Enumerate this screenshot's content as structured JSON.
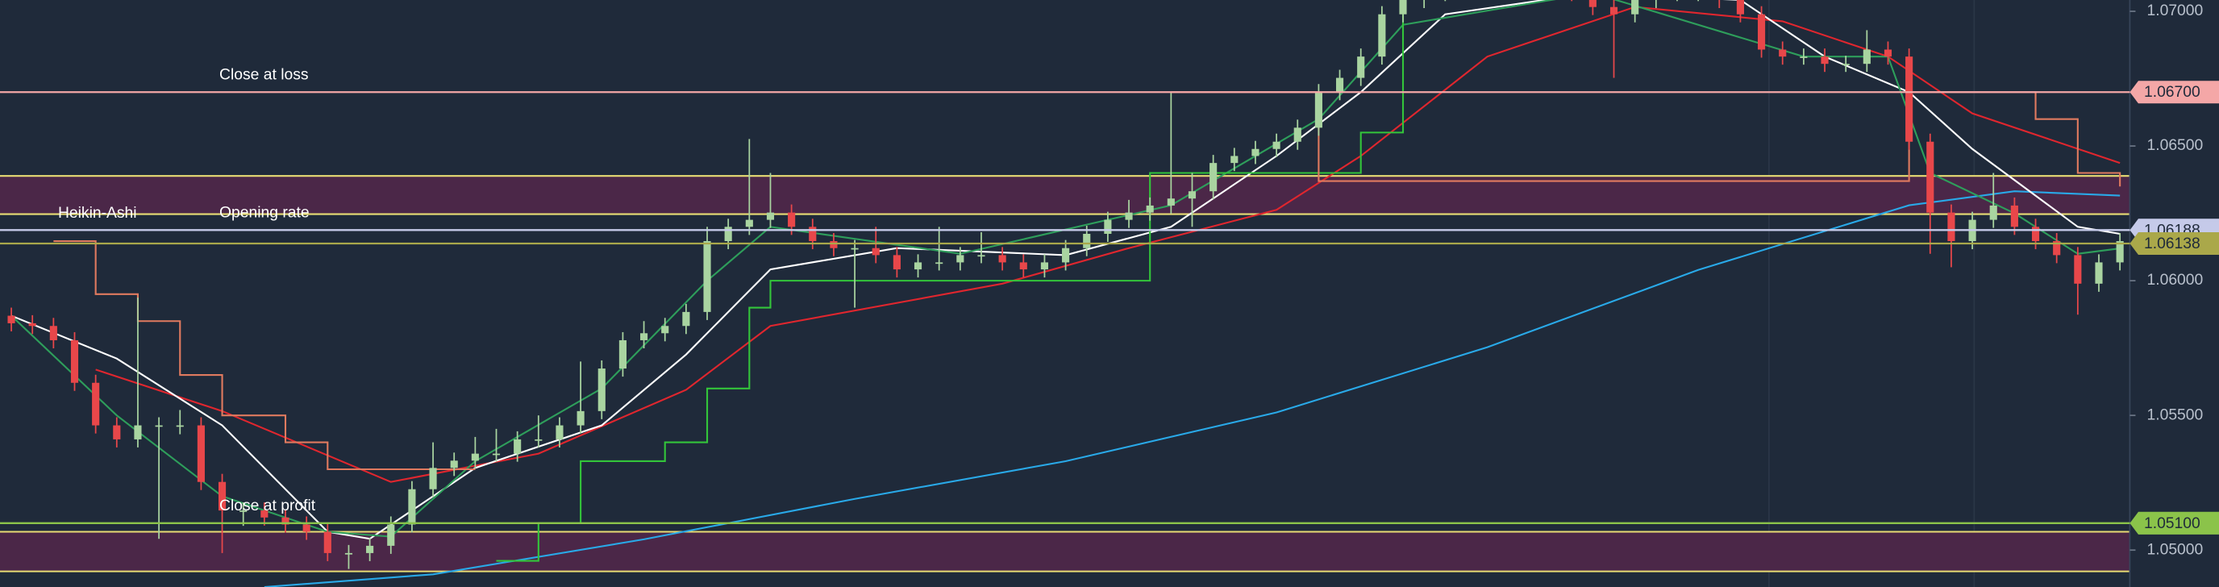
{
  "chart_data": {
    "type": "candlestick",
    "ylim": [
      1.04863,
      1.07042
    ],
    "yticks": [
      {
        "value": 1.07,
        "label": "1.07000"
      },
      {
        "value": 1.065,
        "label": "1.06500"
      },
      {
        "value": 1.06,
        "label": "1.06000"
      },
      {
        "value": 1.055,
        "label": "1.05500"
      },
      {
        "value": 1.05,
        "label": "1.05000"
      }
    ],
    "annotation": "Heikin-Ashi",
    "up_color": "#a9d4a0",
    "down_color": "#e8474a",
    "candles": {
      "open": [
        1.0587,
        1.05842,
        1.05832,
        1.05779,
        1.05621,
        1.05463,
        1.05411,
        1.05463,
        1.05463,
        1.05463,
        1.05253,
        1.05147,
        1.05147,
        1.05121,
        1.05095,
        1.05068,
        1.04989,
        1.04989,
        1.05016,
        1.05095,
        1.05226,
        1.05305,
        1.05332,
        1.05358,
        1.05358,
        1.05411,
        1.05411,
        1.05463,
        1.05516,
        1.05674,
        1.05779,
        1.05805,
        1.05832,
        1.05884,
        1.06147,
        1.062,
        1.06226,
        1.06253,
        1.062,
        1.06147,
        1.06121,
        1.06121,
        1.06095,
        1.06042,
        1.06068,
        1.06068,
        1.06095,
        1.06095,
        1.06068,
        1.06042,
        1.06068,
        1.06121,
        1.06174,
        1.06226,
        1.06253,
        1.06279,
        1.06305,
        1.06332,
        1.06437,
        1.06463,
        1.06489,
        1.06516,
        1.06568,
        1.067,
        1.06753,
        1.06832,
        1.06989,
        1.07042,
        1.07068,
        1.07095,
        1.07095,
        1.07095,
        1.07095,
        1.07095,
        1.07095,
        1.07068,
        1.07016,
        1.06989,
        1.07042,
        1.07068,
        1.07068,
        1.07068,
        1.07042,
        1.06989,
        1.06858,
        1.06832,
        1.06832,
        1.06805,
        1.06805,
        1.06858,
        1.06832,
        1.06516,
        1.06253,
        1.06147,
        1.06226,
        1.06279,
        1.062,
        1.06147,
        1.06095,
        1.05989,
        1.06068
      ],
      "high": [
        1.059,
        1.05872,
        1.05862,
        1.05809,
        1.05651,
        1.05493,
        1.05937,
        1.05493,
        1.0552,
        1.05493,
        1.05283,
        1.05177,
        1.05177,
        1.05151,
        1.05125,
        1.05098,
        1.05019,
        1.05046,
        1.05125,
        1.05256,
        1.054,
        1.05362,
        1.0542,
        1.0545,
        1.05441,
        1.055,
        1.05493,
        1.057,
        1.05704,
        1.05809,
        1.0585,
        1.05862,
        1.05914,
        1.062,
        1.0623,
        1.06526,
        1.064,
        1.06283,
        1.0623,
        1.06177,
        1.06151,
        1.062,
        1.06125,
        1.06098,
        1.062,
        1.06125,
        1.0618,
        1.06125,
        1.06098,
        1.06098,
        1.06151,
        1.06204,
        1.06256,
        1.063,
        1.06309,
        1.067,
        1.064,
        1.06467,
        1.06493,
        1.06519,
        1.06546,
        1.06598,
        1.0673,
        1.06783,
        1.06862,
        1.07019,
        1.07072,
        1.07098,
        1.07125,
        1.07125,
        1.07125,
        1.07125,
        1.07125,
        1.07125,
        1.07125,
        1.07098,
        1.07046,
        1.07072,
        1.07098,
        1.07098,
        1.07098,
        1.07098,
        1.07072,
        1.07019,
        1.06888,
        1.06862,
        1.06862,
        1.06835,
        1.0693,
        1.06888,
        1.06862,
        1.06546,
        1.06283,
        1.06256,
        1.064,
        1.06309,
        1.0623,
        1.06177,
        1.06125,
        1.06098,
        1.06177
      ],
      "low": [
        1.05812,
        1.05802,
        1.05749,
        1.05591,
        1.05433,
        1.05381,
        1.05381,
        1.05042,
        1.0543,
        1.05223,
        1.04989,
        1.0509,
        1.05091,
        1.05065,
        1.05038,
        1.04959,
        1.0493,
        1.04959,
        1.04986,
        1.05065,
        1.05196,
        1.05275,
        1.05302,
        1.05328,
        1.05328,
        1.05381,
        1.05381,
        1.05433,
        1.05486,
        1.05644,
        1.05749,
        1.05775,
        1.05802,
        1.05854,
        1.06117,
        1.0617,
        1.06196,
        1.0617,
        1.06117,
        1.06091,
        1.059,
        1.06065,
        1.06012,
        1.06012,
        1.06038,
        1.06038,
        1.06065,
        1.06038,
        1.06012,
        1.06012,
        1.06038,
        1.06091,
        1.06144,
        1.06196,
        1.06223,
        1.06249,
        1.062,
        1.06302,
        1.06407,
        1.06433,
        1.06459,
        1.06486,
        1.06538,
        1.0667,
        1.06723,
        1.06802,
        1.06959,
        1.07012,
        1.07038,
        1.07065,
        1.07065,
        1.07065,
        1.07065,
        1.07065,
        1.07038,
        1.06986,
        1.06753,
        1.06959,
        1.07012,
        1.07038,
        1.07038,
        1.07012,
        1.06959,
        1.06828,
        1.06802,
        1.06802,
        1.06775,
        1.06775,
        1.06775,
        1.06802,
        1.06486,
        1.061,
        1.0605,
        1.06117,
        1.06196,
        1.0617,
        1.06117,
        1.06065,
        1.05874,
        1.05959,
        1.06038
      ],
      "close": [
        1.05842,
        1.05832,
        1.05779,
        1.05621,
        1.05463,
        1.05411,
        1.05463,
        1.05463,
        1.05463,
        1.05253,
        1.05147,
        1.05147,
        1.05121,
        1.05095,
        1.05068,
        1.04989,
        1.04989,
        1.05016,
        1.05095,
        1.05226,
        1.05305,
        1.05332,
        1.05358,
        1.05358,
        1.05411,
        1.05411,
        1.05463,
        1.05516,
        1.05674,
        1.05779,
        1.05805,
        1.05832,
        1.05884,
        1.06147,
        1.062,
        1.06226,
        1.06253,
        1.062,
        1.06147,
        1.06121,
        1.06121,
        1.06095,
        1.06042,
        1.06068,
        1.06068,
        1.06095,
        1.06095,
        1.06068,
        1.06042,
        1.06068,
        1.06121,
        1.06174,
        1.06226,
        1.06253,
        1.06279,
        1.06305,
        1.06332,
        1.06437,
        1.06463,
        1.06489,
        1.06516,
        1.06568,
        1.067,
        1.06753,
        1.06832,
        1.06989,
        1.07042,
        1.07068,
        1.07095,
        1.07095,
        1.07095,
        1.07095,
        1.07095,
        1.07095,
        1.07068,
        1.07016,
        1.06989,
        1.07042,
        1.07068,
        1.07068,
        1.07068,
        1.07042,
        1.06989,
        1.06858,
        1.06832,
        1.06832,
        1.06805,
        1.06805,
        1.06858,
        1.06832,
        1.06516,
        1.06253,
        1.06147,
        1.06226,
        1.06279,
        1.062,
        1.06147,
        1.06095,
        1.05989,
        1.06068,
        1.06147
      ]
    },
    "lines": [
      {
        "color": "#29a9e8",
        "step": false,
        "x": [
          12,
          20,
          30,
          40,
          50,
          60,
          70,
          80,
          90,
          95,
          100
        ],
        "values": [
          1.04863,
          1.0491,
          1.0504,
          1.0519,
          1.0533,
          1.05511,
          1.05753,
          1.0604,
          1.0628,
          1.06332,
          1.06316
        ]
      },
      {
        "color": "#e0262e",
        "step": false,
        "x": [
          4,
          10,
          18,
          25,
          32,
          36,
          47,
          53,
          60,
          64,
          70,
          77,
          84,
          89,
          93,
          100
        ],
        "values": [
          1.0567,
          1.05516,
          1.05253,
          1.05358,
          1.05595,
          1.05832,
          1.05989,
          1.06121,
          1.06263,
          1.06463,
          1.06832,
          1.07016,
          1.06963,
          1.06832,
          1.06621,
          1.06437
        ]
      },
      {
        "color": "#ffffff",
        "step": false,
        "x": [
          0,
          5,
          10,
          15,
          17,
          22,
          28,
          32,
          36,
          42,
          50,
          55,
          60,
          64,
          68,
          75,
          82,
          86,
          90,
          93,
          98,
          100
        ],
        "values": [
          1.0587,
          1.05711,
          1.05463,
          1.05068,
          1.05042,
          1.05305,
          1.05463,
          1.05726,
          1.06042,
          1.06121,
          1.06095,
          1.062,
          1.06463,
          1.067,
          1.06989,
          1.07068,
          1.07042,
          1.06832,
          1.067,
          1.06489,
          1.062,
          1.06174
        ]
      },
      {
        "color": "#2e9e5b",
        "step": false,
        "x": [
          0,
          5,
          10,
          15,
          18,
          22,
          28,
          33,
          36,
          45,
          55,
          62,
          66,
          75,
          85,
          89,
          91,
          95,
          98,
          100
        ],
        "values": [
          1.0587,
          1.055,
          1.052,
          1.05068,
          1.0505,
          1.0533,
          1.056,
          1.06,
          1.062,
          1.061,
          1.0628,
          1.066,
          1.0695,
          1.07068,
          1.06832,
          1.06832,
          1.064,
          1.0625,
          1.061,
          1.0612
        ]
      },
      {
        "color": "#33c53a",
        "step": true,
        "x": [
          23,
          25,
          27,
          31,
          33,
          35,
          36,
          54,
          62,
          64,
          66,
          75
        ],
        "values": [
          1.0496,
          1.051,
          1.0533,
          1.054,
          1.056,
          1.059,
          1.06,
          1.064,
          1.064,
          1.0655,
          1.07068,
          1.07068
        ]
      },
      {
        "color": "#e07a5f",
        "step": true,
        "x": [
          2,
          4,
          6,
          8,
          10,
          13,
          15,
          22
        ],
        "values": [
          1.06147,
          1.0595,
          1.0585,
          1.0565,
          1.055,
          1.054,
          1.053,
          1.053
        ]
      },
      {
        "color": "#e07a5f",
        "step": true,
        "x": [
          55,
          61,
          62,
          90,
          96,
          98,
          100
        ],
        "values": [
          1.067,
          1.067,
          1.0637,
          1.067,
          1.066,
          1.064,
          1.0635
        ]
      }
    ],
    "bands": [
      {
        "top": 1.06389,
        "bottom": 1.06247,
        "color": "#4b2748",
        "edge": "#e8dc74"
      },
      {
        "top": 1.05068,
        "bottom": 1.04921,
        "color": "#4b2748",
        "edge": "#e8dc74"
      }
    ],
    "levels": [
      {
        "value": 1.067,
        "label": "1.06700",
        "color": "#f4a7a7",
        "text": "Close at loss"
      },
      {
        "value": 1.06188,
        "label": "1.06188",
        "color": "#c5cae9",
        "text": "Opening rate"
      },
      {
        "value": 1.06138,
        "label": "1.06138",
        "color": "#aaa84a"
      },
      {
        "value": 1.051,
        "label": "1.05100",
        "color": "#8bc34a",
        "text": "Close at profit"
      }
    ]
  }
}
